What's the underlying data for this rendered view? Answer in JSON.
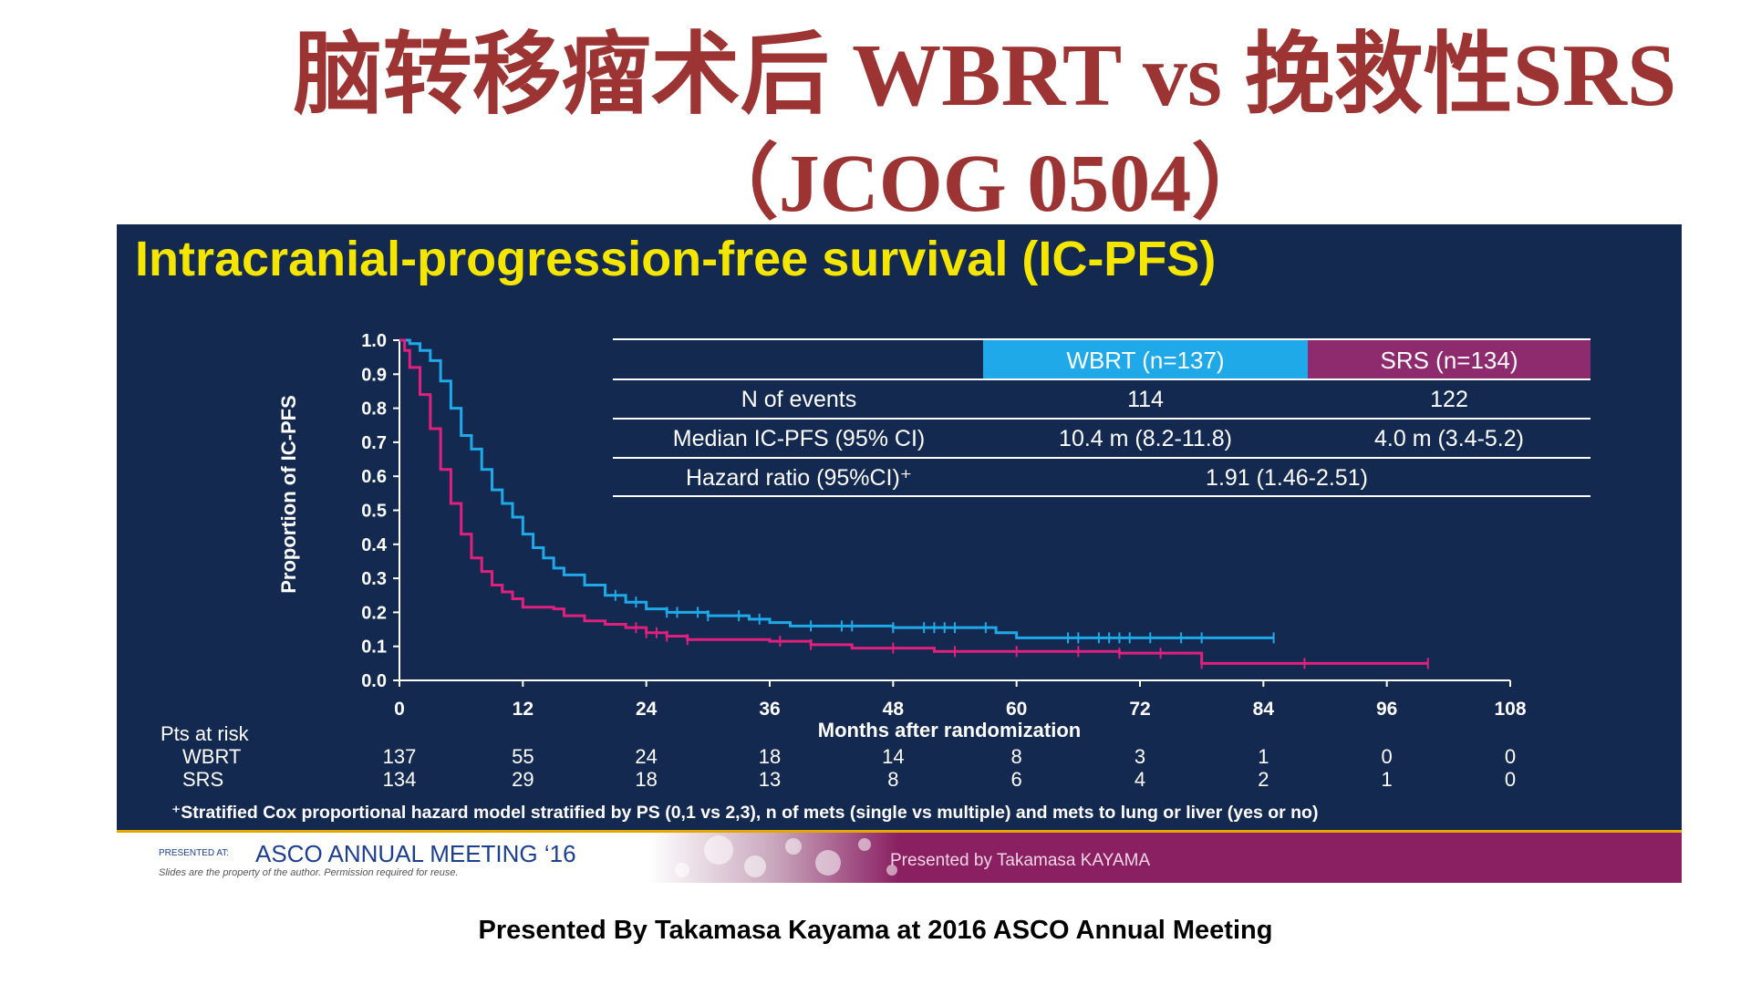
{
  "slide": {
    "title_line1": "脑转移瘤术后 WBRT vs 挽救性SRS",
    "title_line2": "（JCOG 0504）",
    "caption": "Presented By Takamasa Kayama at 2016 ASCO Annual Meeting"
  },
  "colors": {
    "panel_bg": "#13294f",
    "title_red": "#9c3434",
    "heading_yellow": "#f4e600",
    "wbrt_cyan": "#1fa9e8",
    "srs_magenta": "#e0207f",
    "srs_header": "#8e2b6e",
    "footer_purple": "#8a1f62",
    "asco_blue": "#1d3f8f"
  },
  "chart_data": {
    "type": "line",
    "title": "Intracranial-progression-free survival (IC-PFS)",
    "xlabel": "Months after randomization",
    "ylabel": "Proportion of IC-PFS",
    "xlim": [
      0,
      108
    ],
    "ylim": [
      0,
      1
    ],
    "xticks": [
      0,
      12,
      24,
      36,
      48,
      60,
      72,
      84,
      96,
      108
    ],
    "yticks": [
      "0.0",
      "0.1",
      "0.2",
      "0.3",
      "0.4",
      "0.5",
      "0.6",
      "0.7",
      "0.8",
      "0.9",
      "1.0"
    ],
    "series": [
      {
        "name": "WBRT",
        "color": "#1fa9e8",
        "points": [
          [
            0,
            1.0
          ],
          [
            1,
            0.99
          ],
          [
            2,
            0.97
          ],
          [
            3,
            0.94
          ],
          [
            4,
            0.88
          ],
          [
            5,
            0.8
          ],
          [
            6,
            0.72
          ],
          [
            7,
            0.68
          ],
          [
            8,
            0.62
          ],
          [
            9,
            0.56
          ],
          [
            10,
            0.52
          ],
          [
            11,
            0.48
          ],
          [
            12,
            0.43
          ],
          [
            13,
            0.39
          ],
          [
            14,
            0.36
          ],
          [
            15,
            0.33
          ],
          [
            16,
            0.31
          ],
          [
            18,
            0.28
          ],
          [
            20,
            0.25
          ],
          [
            22,
            0.23
          ],
          [
            24,
            0.21
          ],
          [
            26,
            0.2
          ],
          [
            30,
            0.19
          ],
          [
            34,
            0.18
          ],
          [
            36,
            0.17
          ],
          [
            38,
            0.16
          ],
          [
            48,
            0.155
          ],
          [
            58,
            0.14
          ],
          [
            60,
            0.125
          ],
          [
            84,
            0.125
          ],
          [
            85,
            0.125
          ]
        ],
        "censor": [
          21,
          23,
          26,
          27,
          29,
          30,
          33,
          35,
          40,
          43,
          44,
          48,
          51,
          52,
          53,
          54,
          57,
          65,
          66,
          68,
          69,
          70,
          71,
          73,
          76,
          78,
          85
        ]
      },
      {
        "name": "SRS",
        "color": "#e0207f",
        "points": [
          [
            0,
            1.0
          ],
          [
            0.5,
            0.97
          ],
          [
            1,
            0.92
          ],
          [
            2,
            0.84
          ],
          [
            3,
            0.74
          ],
          [
            4,
            0.62
          ],
          [
            5,
            0.52
          ],
          [
            6,
            0.43
          ],
          [
            7,
            0.36
          ],
          [
            8,
            0.32
          ],
          [
            9,
            0.28
          ],
          [
            10,
            0.26
          ],
          [
            11,
            0.24
          ],
          [
            12,
            0.215
          ],
          [
            15,
            0.21
          ],
          [
            16,
            0.19
          ],
          [
            18,
            0.175
          ],
          [
            20,
            0.165
          ],
          [
            22,
            0.155
          ],
          [
            24,
            0.14
          ],
          [
            26,
            0.13
          ],
          [
            28,
            0.12
          ],
          [
            36,
            0.115
          ],
          [
            40,
            0.105
          ],
          [
            44,
            0.095
          ],
          [
            52,
            0.085
          ],
          [
            70,
            0.08
          ],
          [
            78,
            0.05
          ],
          [
            100,
            0.05
          ]
        ],
        "censor": [
          23,
          24,
          25,
          26,
          28,
          37,
          40,
          48,
          54,
          60,
          66,
          70,
          74,
          78,
          88,
          100
        ]
      }
    ],
    "table": {
      "headers": [
        "",
        "WBRT (n=137)",
        "SRS (n=134)"
      ],
      "rows": [
        [
          "N of events",
          "114",
          "122"
        ],
        [
          "Median IC-PFS (95% CI)",
          "10.4 m (8.2-11.8)",
          "4.0 m (3.4-5.2)"
        ],
        [
          "Hazard ratio (95%CI)⁺",
          "1.91 (1.46-2.51)"
        ]
      ]
    },
    "risk_table": {
      "label": "Pts at risk",
      "rows": [
        {
          "name": "WBRT",
          "values": [
            "137",
            "55",
            "24",
            "18",
            "14",
            "8",
            "3",
            "1",
            "0",
            "0"
          ]
        },
        {
          "name": "SRS",
          "values": [
            "134",
            "29",
            "18",
            "13",
            "8",
            "6",
            "4",
            "2",
            "1",
            "0"
          ]
        }
      ]
    },
    "footnote": "⁺Stratified Cox proportional hazard model stratified by PS (0,1 vs 2,3), n of mets (single vs multiple) and mets to lung or liver (yes or no)"
  },
  "footer": {
    "presented_at": "PRESENTED AT:",
    "meeting": "ASCO ANNUAL MEETING ‘16",
    "disclaimer": "Slides are the property of the author. Permission required for reuse.",
    "presenter": "Presented by Takamasa KAYAMA"
  }
}
